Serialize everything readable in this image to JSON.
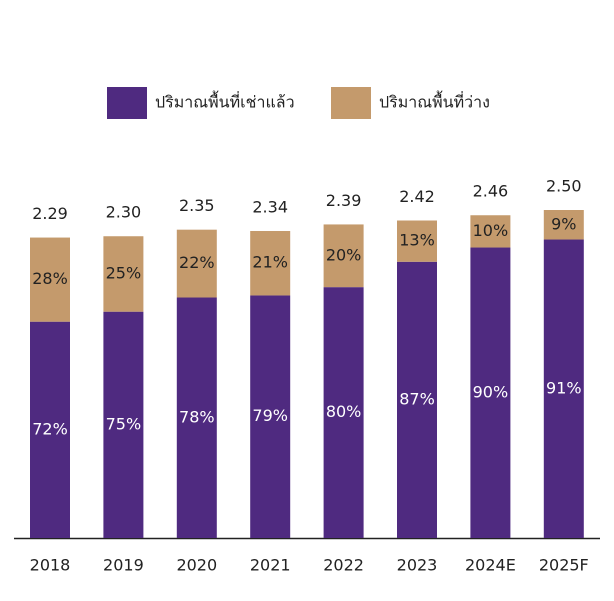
{
  "chart_data": {
    "type": "stacked-bar",
    "categories": [
      "2018",
      "2019",
      "2020",
      "2021",
      "2022",
      "2023",
      "2024E",
      "2025F"
    ],
    "totals": {
      "values": [
        2.29,
        2.3,
        2.35,
        2.34,
        2.39,
        2.42,
        2.46,
        2.5
      ],
      "value_labels": [
        "2.29",
        "2.30",
        "2.35",
        "2.34",
        "2.39",
        "2.42",
        "2.46",
        "2.50"
      ]
    },
    "series": [
      {
        "name": "ปริมาณพื้นที่เช่าแล้ว",
        "color": "#4f2a80",
        "label_color": "#ffffff",
        "values": [
          72,
          75,
          78,
          79,
          80,
          87,
          90,
          91
        ],
        "value_labels": [
          "72%",
          "75%",
          "78%",
          "79%",
          "80%",
          "87%",
          "90%",
          "91%"
        ]
      },
      {
        "name": "ปริมาณพื้นที่ว่าง",
        "color": "#c49a6c",
        "label_color": "#222222",
        "values": [
          28,
          25,
          22,
          21,
          20,
          13,
          10,
          9
        ],
        "value_labels": [
          "28%",
          "25%",
          "22%",
          "21%",
          "20%",
          "13%",
          "10%",
          "9%"
        ]
      }
    ]
  }
}
